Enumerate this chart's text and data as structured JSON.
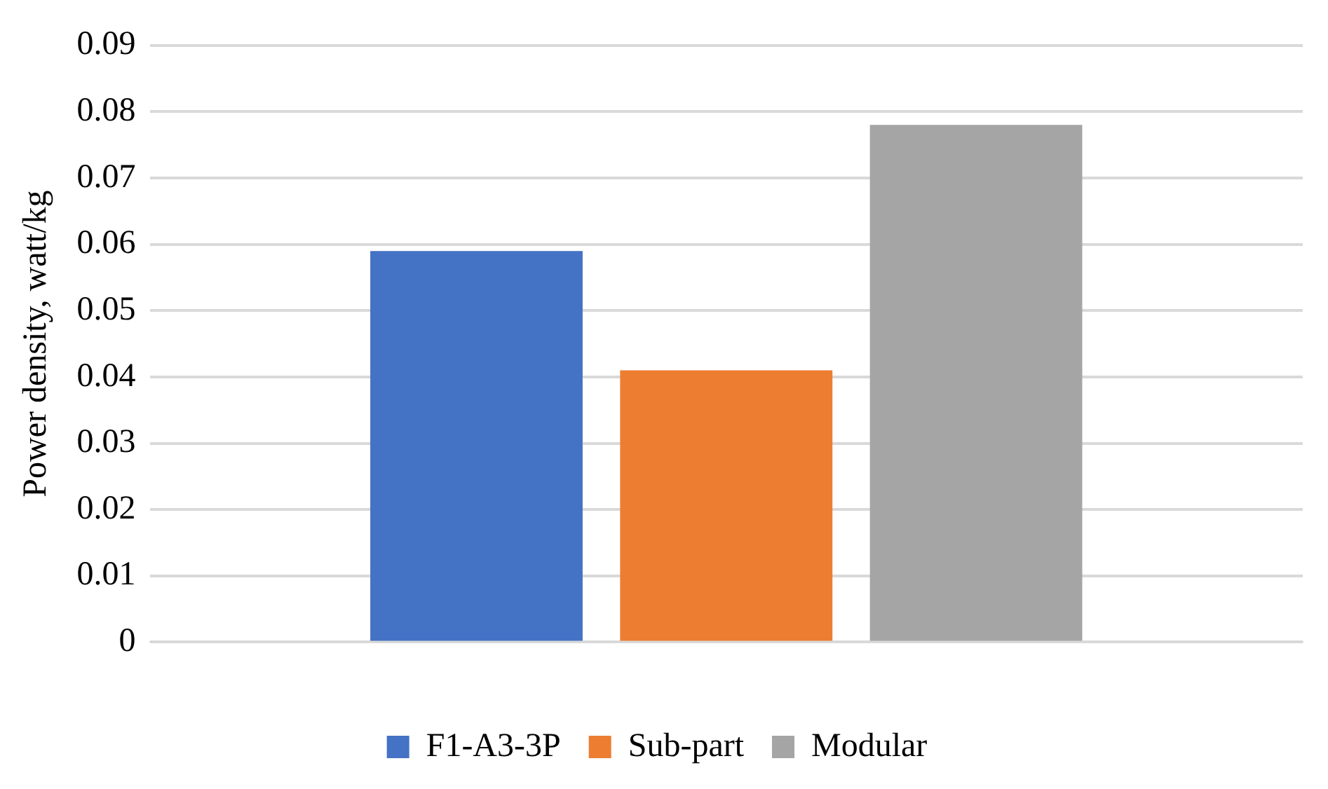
{
  "chart_data": {
    "type": "bar",
    "ylabel": "Power density, watt/kg",
    "categories": [
      null
    ],
    "series": [
      {
        "name": "F1-A3-3P",
        "color": "#4472c4",
        "values": [
          0.059
        ]
      },
      {
        "name": "Sub-part",
        "color": "#ed7d31",
        "values": [
          0.041
        ]
      },
      {
        "name": "Modular",
        "color": "#a5a5a5",
        "values": [
          0.078
        ]
      }
    ],
    "ylim": [
      0,
      0.09
    ],
    "yticks": [
      0,
      0.01,
      0.02,
      0.03,
      0.04,
      0.05,
      0.06,
      0.07,
      0.08,
      0.09
    ],
    "grid": "y",
    "legend": "bottom"
  }
}
